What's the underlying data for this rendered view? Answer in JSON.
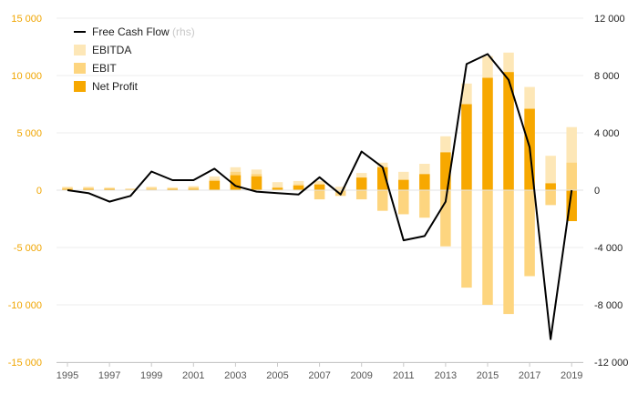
{
  "chart_data": {
    "type": "bar",
    "x": [
      1995,
      1996,
      1997,
      1998,
      1999,
      2000,
      2001,
      2002,
      2003,
      2004,
      2005,
      2006,
      2007,
      2008,
      2009,
      2010,
      2011,
      2012,
      2013,
      2014,
      2015,
      2016,
      2017,
      2018,
      2019
    ],
    "x_tick_labels": [
      "1995",
      "1997",
      "1999",
      "2001",
      "2003",
      "2005",
      "2007",
      "2009",
      "2011",
      "2013",
      "2015",
      "2017",
      "2019"
    ],
    "y_left": {
      "lim": [
        -15000,
        15000
      ],
      "ticks": [
        15000,
        10000,
        5000,
        0,
        -5000,
        -10000,
        -15000
      ],
      "tick_labels": [
        "15 000",
        "10 000",
        "5 000",
        "0",
        "-5 000",
        "-10 000",
        "-15 000"
      ]
    },
    "y_right": {
      "lim": [
        -12000,
        12000
      ],
      "ticks": [
        12000,
        8000,
        4000,
        0,
        -4000,
        -8000,
        -12000
      ],
      "tick_labels": [
        "12 000",
        "8 000",
        "4 000",
        "0",
        "-4 000",
        "-8 000",
        "-12 000"
      ]
    },
    "series": [
      {
        "name": "EBITDA",
        "kind": "bar",
        "axis": "left",
        "color": "#fde7b7",
        "values": [
          300,
          300,
          250,
          150,
          300,
          250,
          350,
          1200,
          2000,
          1800,
          700,
          800,
          800,
          300,
          1500,
          2400,
          1600,
          2300,
          4700,
          9300,
          11700,
          12000,
          9000,
          3000,
          5500
        ]
      },
      {
        "name": "EBIT",
        "kind": "bar",
        "axis": "left",
        "color": "#fdd57f",
        "values": [
          200,
          200,
          150,
          100,
          200,
          150,
          250,
          900,
          1600,
          1400,
          250,
          500,
          -800,
          -500,
          -800,
          -1800,
          -2100,
          -2400,
          -4900,
          -8500,
          -10000,
          -10800,
          -7500,
          -1300,
          2400
        ]
      },
      {
        "name": "Net Profit",
        "kind": "bar",
        "axis": "left",
        "color": "#f7a800",
        "values": [
          100,
          100,
          100,
          50,
          50,
          100,
          100,
          800,
          1300,
          1200,
          200,
          400,
          500,
          0,
          1100,
          2000,
          900,
          1400,
          3300,
          7500,
          9800,
          10300,
          7100,
          600,
          -2700
        ]
      },
      {
        "name": "Free Cash Flow",
        "note": "(rhs)",
        "kind": "line",
        "axis": "right",
        "color": "#000000",
        "values": [
          0,
          -200,
          -800,
          -400,
          1300,
          700,
          700,
          1500,
          300,
          -100,
          -200,
          -300,
          900,
          -300,
          2700,
          1600,
          -3500,
          -3200,
          -800,
          8800,
          9500,
          7700,
          3000,
          -10400,
          0
        ]
      }
    ],
    "legend": {
      "placement": "top-left"
    },
    "grid": true
  }
}
